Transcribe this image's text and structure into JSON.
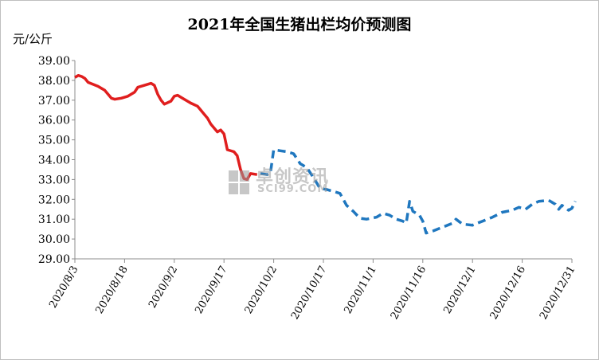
{
  "chart_data": {
    "type": "line",
    "title": "2021年全国生猪出栏均价预测图",
    "ylabel": "元/公斤",
    "xlabel": "",
    "ylim": [
      29,
      39
    ],
    "y_ticks": [
      "29.00",
      "30.00",
      "31.00",
      "32.00",
      "33.00",
      "34.00",
      "35.00",
      "36.00",
      "37.00",
      "38.00",
      "39.00"
    ],
    "x_ticks": [
      "2020/8/3",
      "2020/8/18",
      "2020/9/2",
      "2020/9/17",
      "2020/10/2",
      "2020/10/17",
      "2020/11/1",
      "2020/11/16",
      "2020/12/1",
      "2020/12/16",
      "2020/12/31"
    ],
    "x_tick_dates": [
      "2020-08-03",
      "2020-08-18",
      "2020-09-02",
      "2020-09-17",
      "2020-10-02",
      "2020-10-17",
      "2020-11-01",
      "2020-11-16",
      "2020-12-01",
      "2020-12-16",
      "2020-12-31"
    ],
    "grid": false,
    "legend": "none",
    "series": [
      {
        "style": "solid",
        "color": "#e01e1e",
        "points": [
          [
            "2020-08-03",
            38.15
          ],
          [
            "2020-08-04",
            38.25
          ],
          [
            "2020-08-05",
            38.2
          ],
          [
            "2020-08-06",
            38.1
          ],
          [
            "2020-08-07",
            37.9
          ],
          [
            "2020-08-10",
            37.7
          ],
          [
            "2020-08-12",
            37.5
          ],
          [
            "2020-08-14",
            37.1
          ],
          [
            "2020-08-15",
            37.05
          ],
          [
            "2020-08-17",
            37.1
          ],
          [
            "2020-08-19",
            37.2
          ],
          [
            "2020-08-21",
            37.4
          ],
          [
            "2020-08-22",
            37.65
          ],
          [
            "2020-08-24",
            37.75
          ],
          [
            "2020-08-26",
            37.85
          ],
          [
            "2020-08-27",
            37.75
          ],
          [
            "2020-08-28",
            37.3
          ],
          [
            "2020-08-29",
            37.0
          ],
          [
            "2020-08-30",
            36.8
          ],
          [
            "2020-09-01",
            36.95
          ],
          [
            "2020-09-02",
            37.2
          ],
          [
            "2020-09-03",
            37.25
          ],
          [
            "2020-09-05",
            37.05
          ],
          [
            "2020-09-07",
            36.85
          ],
          [
            "2020-09-09",
            36.7
          ],
          [
            "2020-09-11",
            36.3
          ],
          [
            "2020-09-12",
            36.1
          ],
          [
            "2020-09-13",
            35.8
          ],
          [
            "2020-09-15",
            35.4
          ],
          [
            "2020-09-16",
            35.5
          ],
          [
            "2020-09-17",
            35.3
          ],
          [
            "2020-09-18",
            34.5
          ],
          [
            "2020-09-20",
            34.4
          ],
          [
            "2020-09-21",
            34.2
          ],
          [
            "2020-09-22",
            33.5
          ],
          [
            "2020-09-23",
            33.05
          ],
          [
            "2020-09-24",
            33.0
          ],
          [
            "2020-09-25",
            33.3
          ],
          [
            "2020-09-27",
            33.25
          ]
        ]
      },
      {
        "style": "dashed",
        "color": "#1f77bf",
        "points": [
          [
            "2020-09-28",
            33.3
          ],
          [
            "2020-09-30",
            33.25
          ],
          [
            "2020-10-01",
            33.3
          ],
          [
            "2020-10-02",
            34.5
          ],
          [
            "2020-10-04",
            34.45
          ],
          [
            "2020-10-06",
            34.4
          ],
          [
            "2020-10-08",
            34.3
          ],
          [
            "2020-10-10",
            33.8
          ],
          [
            "2020-10-12",
            33.6
          ],
          [
            "2020-10-14",
            33.1
          ],
          [
            "2020-10-16",
            32.55
          ],
          [
            "2020-10-18",
            32.5
          ],
          [
            "2020-10-20",
            32.4
          ],
          [
            "2020-10-22",
            32.3
          ],
          [
            "2020-10-24",
            31.7
          ],
          [
            "2020-10-26",
            31.4
          ],
          [
            "2020-10-28",
            31.05
          ],
          [
            "2020-10-30",
            31.0
          ],
          [
            "2020-11-02",
            31.1
          ],
          [
            "2020-11-04",
            31.3
          ],
          [
            "2020-11-06",
            31.2
          ],
          [
            "2020-11-08",
            31.0
          ],
          [
            "2020-11-10",
            30.9
          ],
          [
            "2020-11-11",
            30.8
          ],
          [
            "2020-11-12",
            31.9
          ],
          [
            "2020-11-13",
            31.4
          ],
          [
            "2020-11-15",
            31.2
          ],
          [
            "2020-11-16",
            30.9
          ],
          [
            "2020-11-17",
            30.3
          ],
          [
            "2020-11-19",
            30.4
          ],
          [
            "2020-11-22",
            30.6
          ],
          [
            "2020-11-25",
            30.8
          ],
          [
            "2020-11-26",
            31.0
          ],
          [
            "2020-11-28",
            30.75
          ],
          [
            "2020-12-01",
            30.7
          ],
          [
            "2020-12-04",
            30.9
          ],
          [
            "2020-12-07",
            31.1
          ],
          [
            "2020-12-10",
            31.35
          ],
          [
            "2020-12-13",
            31.45
          ],
          [
            "2020-12-15",
            31.6
          ],
          [
            "2020-12-17",
            31.5
          ],
          [
            "2020-12-19",
            31.75
          ],
          [
            "2020-12-21",
            31.9
          ],
          [
            "2020-12-24",
            31.95
          ],
          [
            "2020-12-26",
            31.75
          ],
          [
            "2020-12-27",
            31.5
          ],
          [
            "2020-12-28",
            31.7
          ],
          [
            "2020-12-30",
            31.45
          ],
          [
            "2020-12-31",
            31.55
          ],
          [
            "2021-01-01",
            31.9
          ]
        ]
      }
    ]
  },
  "watermark": {
    "cn": "卓创资讯",
    "en": "SCI99.COM"
  }
}
